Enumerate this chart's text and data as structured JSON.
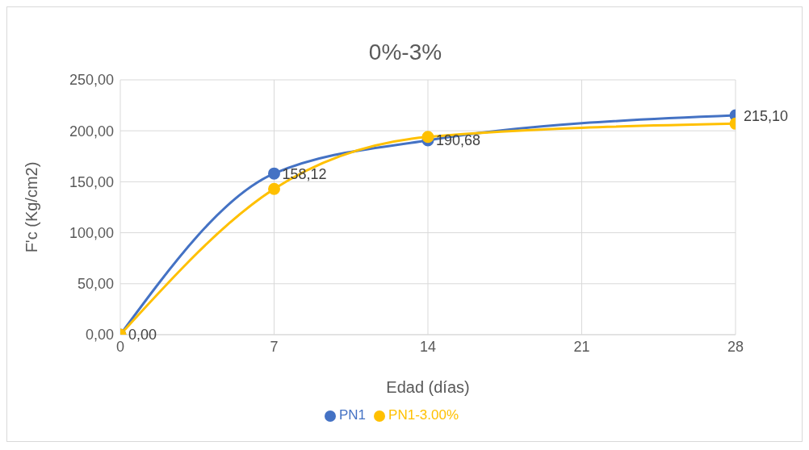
{
  "chart_data": {
    "type": "line",
    "title": "0%-3%",
    "xlabel": "Edad (días)",
    "ylabel": "F'c (Kg/cm2)",
    "x": [
      0,
      7,
      14,
      28
    ],
    "series": [
      {
        "name": "PN1",
        "color": "#4472c4",
        "values": [
          0,
          158.12,
          190.68,
          215.1
        ],
        "value_labels": [
          "0,00",
          "158,12",
          "190,68",
          "215,10"
        ]
      },
      {
        "name": "PN1-3.00%",
        "color": "#ffc000",
        "values": [
          0,
          143,
          194,
          207
        ]
      }
    ],
    "xlim": [
      0,
      28
    ],
    "xticks": [
      0,
      7,
      14,
      21,
      28
    ],
    "ylim": [
      0,
      250
    ],
    "yticks": [
      {
        "value": 0,
        "label": "0,00"
      },
      {
        "value": 50,
        "label": "50,00"
      },
      {
        "value": 100,
        "label": "100,00"
      },
      {
        "value": 150,
        "label": "150,00"
      },
      {
        "value": 200,
        "label": "200,00"
      },
      {
        "value": 250,
        "label": "250,00"
      }
    ],
    "grid": true,
    "legend": "bottom",
    "marker": "circle",
    "line_style": "solid"
  }
}
